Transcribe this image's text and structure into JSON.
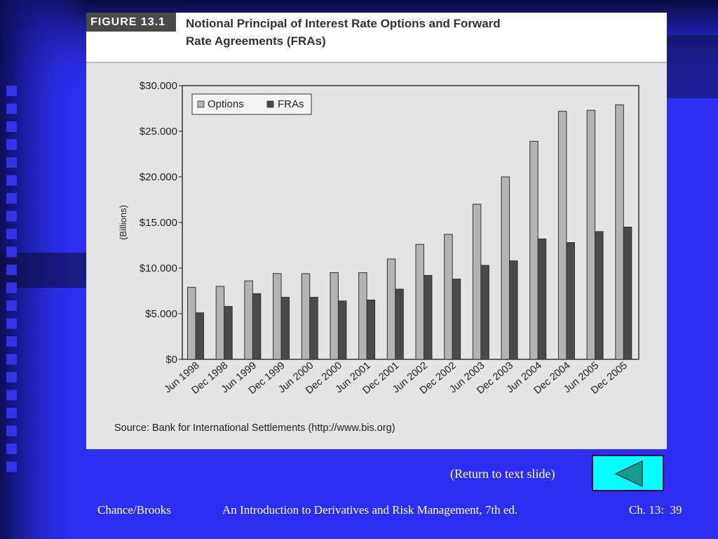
{
  "figure": {
    "label": "FIGURE 13.1",
    "title_line1": "Notional Principal of Interest Rate Options and Forward",
    "title_line2": "Rate Agreements (FRAs)",
    "source": "Source: Bank for International Settlements (http://www.bis.org)"
  },
  "chart_data": {
    "type": "bar",
    "ylabel": "(Billions)",
    "ylim": [
      0,
      30000
    ],
    "yticks": [
      0,
      5000,
      10000,
      15000,
      20000,
      25000,
      30000
    ],
    "ytick_labels": [
      "$0",
      "$5.000",
      "$10.000",
      "$15.000",
      "$20.000",
      "$25.000",
      "$30.000"
    ],
    "legend_position": "top-left",
    "grid": false,
    "categories": [
      "Jun 1998",
      "Dec 1998",
      "Jun 1999",
      "Dec 1999",
      "Jun 2000",
      "Dec 2000",
      "Jun 2001",
      "Dec 2001",
      "Jun 2002",
      "Dec 2002",
      "Jun 2003",
      "Dec 2003",
      "Jun 2004",
      "Dec 2004",
      "Jun 2005",
      "Dec 2005"
    ],
    "series": [
      {
        "name": "Options",
        "color": "#b3b3b3",
        "values": [
          7900,
          8000,
          8600,
          9400,
          9400,
          9500,
          9500,
          11000,
          12600,
          13700,
          17000,
          20000,
          23900,
          27200,
          27300,
          27900
        ]
      },
      {
        "name": "FRAs",
        "color": "#4a4a4a",
        "values": [
          5100,
          5800,
          7200,
          6800,
          6800,
          6400,
          6500,
          7700,
          9200,
          8800,
          10300,
          10800,
          13200,
          12800,
          14000,
          14500
        ]
      }
    ]
  },
  "nav": {
    "return_text": "(Return to text slide)",
    "return_icon": "triangle-left-icon"
  },
  "footer": {
    "left": "Chance/Brooks",
    "center": "An Introduction to Derivatives and Risk Management, 7th ed.",
    "right": "Ch. 13:  39"
  },
  "colors": {
    "slide_bg": "#2e2ef2",
    "return_button": "#00ffff",
    "return_icon": "#159c8a"
  }
}
